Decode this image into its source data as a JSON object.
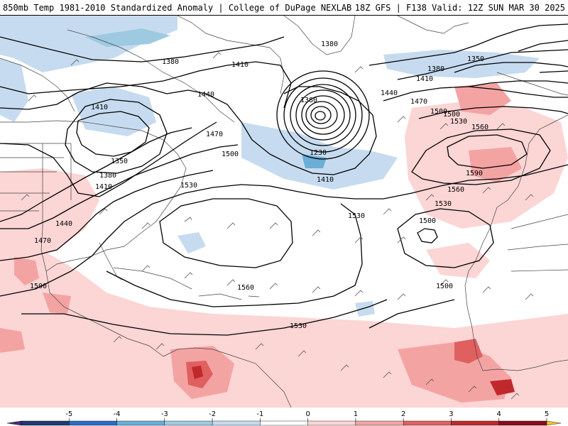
{
  "header": {
    "title_left": "850mb Temp 1981-2010 Standardized Anomaly | College of DuPage NEXLAB",
    "title_right": "18Z GFS | F138 Valid: 12Z SUN MAR 30 2025"
  },
  "colors": {
    "coast": "#444444",
    "contour": "#000000",
    "cold1": "#c6dbef",
    "cold2": "#9ecae1",
    "cold3": "#6baed6",
    "warm1": "#fcd5d5",
    "warm2": "#f4a3a3",
    "warm3": "#e06060",
    "warm4": "#c0282c",
    "warm5": "#8b0a1a"
  },
  "colorbar": {
    "ticks": [
      "-5",
      "-4",
      "-3",
      "-2",
      "-1",
      "0",
      "1",
      "2",
      "3",
      "4",
      "5"
    ],
    "segments": [
      {
        "value": -6,
        "color": "#4b2a7a"
      },
      {
        "value": -5,
        "color": "#1f3a6e"
      },
      {
        "value": -4,
        "color": "#2b6cc4"
      },
      {
        "value": -3,
        "color": "#6baed6"
      },
      {
        "value": -2,
        "color": "#9ecae1"
      },
      {
        "value": -1,
        "color": "#c6dbef"
      },
      {
        "value": 0,
        "color": "#ffffff"
      },
      {
        "value": 1,
        "color": "#fcd5d5"
      },
      {
        "value": 2,
        "color": "#f4a3a3"
      },
      {
        "value": 3,
        "color": "#e06060"
      },
      {
        "value": 4,
        "color": "#c0282c"
      },
      {
        "value": 5,
        "color": "#8b0a1a"
      },
      {
        "value": 6,
        "color": "#f2c230"
      }
    ]
  },
  "contour_labels": [
    {
      "id": "l1380a",
      "text": "1380"
    },
    {
      "id": "l1380b",
      "text": "1380"
    },
    {
      "id": "l1410a",
      "text": "1410"
    },
    {
      "id": "l1410b",
      "text": "1410"
    },
    {
      "id": "l1440a",
      "text": "1440"
    },
    {
      "id": "l1470a",
      "text": "1470"
    },
    {
      "id": "l1500a",
      "text": "1500"
    },
    {
      "id": "l1530a",
      "text": "1530"
    },
    {
      "id": "l1350a",
      "text": "1350"
    },
    {
      "id": "l1380c",
      "text": "1380"
    },
    {
      "id": "l1410c",
      "text": "1410"
    },
    {
      "id": "l1440b",
      "text": "1440"
    },
    {
      "id": "l1470b",
      "text": "1470"
    },
    {
      "id": "l1500b",
      "text": "1500"
    },
    {
      "id": "l1380d",
      "text": "1380"
    },
    {
      "id": "l1230",
      "text": "1230"
    },
    {
      "id": "l1410d",
      "text": "1410"
    },
    {
      "id": "l1380e",
      "text": "1380"
    },
    {
      "id": "l1410e",
      "text": "1410"
    },
    {
      "id": "l1350b",
      "text": "1350"
    },
    {
      "id": "l1440c",
      "text": "1440"
    },
    {
      "id": "l1470c",
      "text": "1470"
    },
    {
      "id": "l1500c",
      "text": "1500"
    },
    {
      "id": "l1530b",
      "text": "1530"
    },
    {
      "id": "l1560a",
      "text": "1560"
    },
    {
      "id": "l1590",
      "text": "1590"
    },
    {
      "id": "l1560b",
      "text": "1560"
    },
    {
      "id": "l1530c",
      "text": "1530"
    },
    {
      "id": "l1530d",
      "text": "1530"
    },
    {
      "id": "l1500d",
      "text": "1500"
    },
    {
      "id": "l1500e",
      "text": "1500"
    },
    {
      "id": "l1560c",
      "text": "1560"
    },
    {
      "id": "l1530e",
      "text": "1530"
    },
    {
      "id": "l1500f",
      "text": "1500"
    }
  ]
}
